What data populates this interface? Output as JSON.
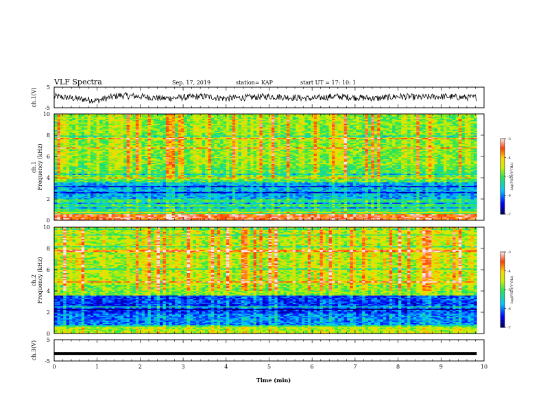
{
  "header": {
    "title": "VLF Spectra",
    "date": "Sep. 17, 2019",
    "station": "station= KAP",
    "start_ut": "start  UT  =   17: 10: 1"
  },
  "chart_data": [
    {
      "type": "line",
      "panel": "ch1-waveform",
      "ylabel": "ch.1(V)",
      "ylim": [
        -5,
        5
      ],
      "yticks": [
        -5,
        5
      ],
      "xlim": [
        0,
        10
      ],
      "x_end": 9.83,
      "description_values": {
        "x": [
          0.0,
          0.5,
          1.0,
          1.5,
          2.0,
          2.5,
          3.0,
          3.5,
          4.0,
          4.5,
          5.0,
          5.5,
          6.0,
          6.5,
          7.0,
          7.5,
          8.0,
          8.5,
          9.0,
          9.5,
          9.83
        ],
        "y": [
          0.5,
          -0.5,
          -1.5,
          1.0,
          0.5,
          -0.5,
          0.0,
          0.5,
          -0.5,
          0.0,
          0.5,
          0.0,
          -0.5,
          0.5,
          0.0,
          -0.5,
          0.5,
          0.0,
          0.5,
          0.0,
          0.0
        ]
      }
    },
    {
      "type": "heatmap",
      "panel": "ch1-spectrogram",
      "ylabel": "ch.1\nFrequency  (kHz)",
      "ylim": [
        0,
        10
      ],
      "yticks": [
        0,
        2,
        4,
        6,
        8,
        10
      ],
      "xlim": [
        0,
        10
      ],
      "colorbar": {
        "label": "log(PSD)(V²/Hz)",
        "range": [
          -7,
          -3
        ],
        "ticks": [
          "-3",
          "-4",
          "-5",
          "-6",
          "-7"
        ]
      },
      "bands_khz": [
        {
          "from": 0,
          "to": 0.6,
          "level": -3.5
        },
        {
          "from": 0.6,
          "to": 2.0,
          "level": -5.2
        },
        {
          "from": 2.0,
          "to": 3.6,
          "level": -5.8
        },
        {
          "from": 3.6,
          "to": 5.2,
          "level": -5.0
        },
        {
          "from": 5.2,
          "to": 10,
          "level": -4.8
        }
      ]
    },
    {
      "type": "heatmap",
      "panel": "ch2-spectrogram",
      "ylabel": "ch.2\nFrequency  (kHz)",
      "ylim": [
        0,
        10
      ],
      "yticks": [
        0,
        2,
        4,
        6,
        8,
        10
      ],
      "xlim": [
        0,
        10
      ],
      "colorbar": {
        "label": "log(PSD)(V²/Hz)",
        "range": [
          -7,
          -3
        ],
        "ticks": [
          "-3",
          "-4",
          "-5",
          "-6",
          "-7"
        ]
      },
      "bands_khz": [
        {
          "from": 0,
          "to": 0.8,
          "level": -4.6
        },
        {
          "from": 0.8,
          "to": 1.9,
          "level": -6.0
        },
        {
          "from": 1.9,
          "to": 3.6,
          "level": -6.3
        },
        {
          "from": 3.6,
          "to": 4.6,
          "level": -4.8
        },
        {
          "from": 4.6,
          "to": 10,
          "level": -4.6
        }
      ]
    },
    {
      "type": "line",
      "panel": "ch3-waveform",
      "ylabel": "ch.3(V)",
      "ylim": [
        -5,
        5
      ],
      "yticks": [
        -5,
        5
      ],
      "xlim": [
        0,
        10
      ],
      "x_end": 9.83,
      "description_values": {
        "x": [
          0,
          9.83
        ],
        "y": [
          -1.5,
          -1.5
        ]
      }
    }
  ],
  "xaxis": {
    "label": "Time  (min)",
    "ticks": [
      "0",
      "1",
      "2",
      "3",
      "4",
      "5",
      "6",
      "7",
      "8",
      "9",
      "10"
    ],
    "range": [
      0,
      10
    ]
  }
}
